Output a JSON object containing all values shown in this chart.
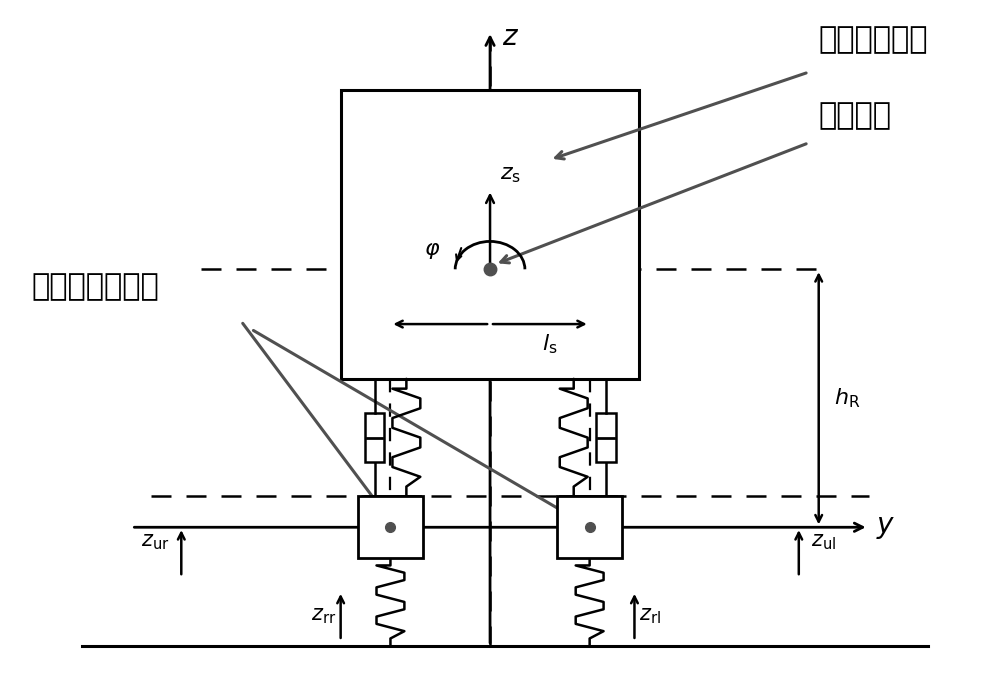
{
  "bg_color": "#ffffff",
  "line_color": "#000000",
  "dashed_color": "#000000",
  "arrow_color": "#505050",
  "spring_color": "#000000",
  "box_color": "#000000",
  "dot_color": "#505050",
  "text_color": "#000000",
  "text_sprung": "簧载质量重心",
  "text_rollover": "侧翻中心",
  "text_unsprung": "非簧载质量重心",
  "figsize": [
    10.0,
    6.89
  ],
  "dpi": 100
}
